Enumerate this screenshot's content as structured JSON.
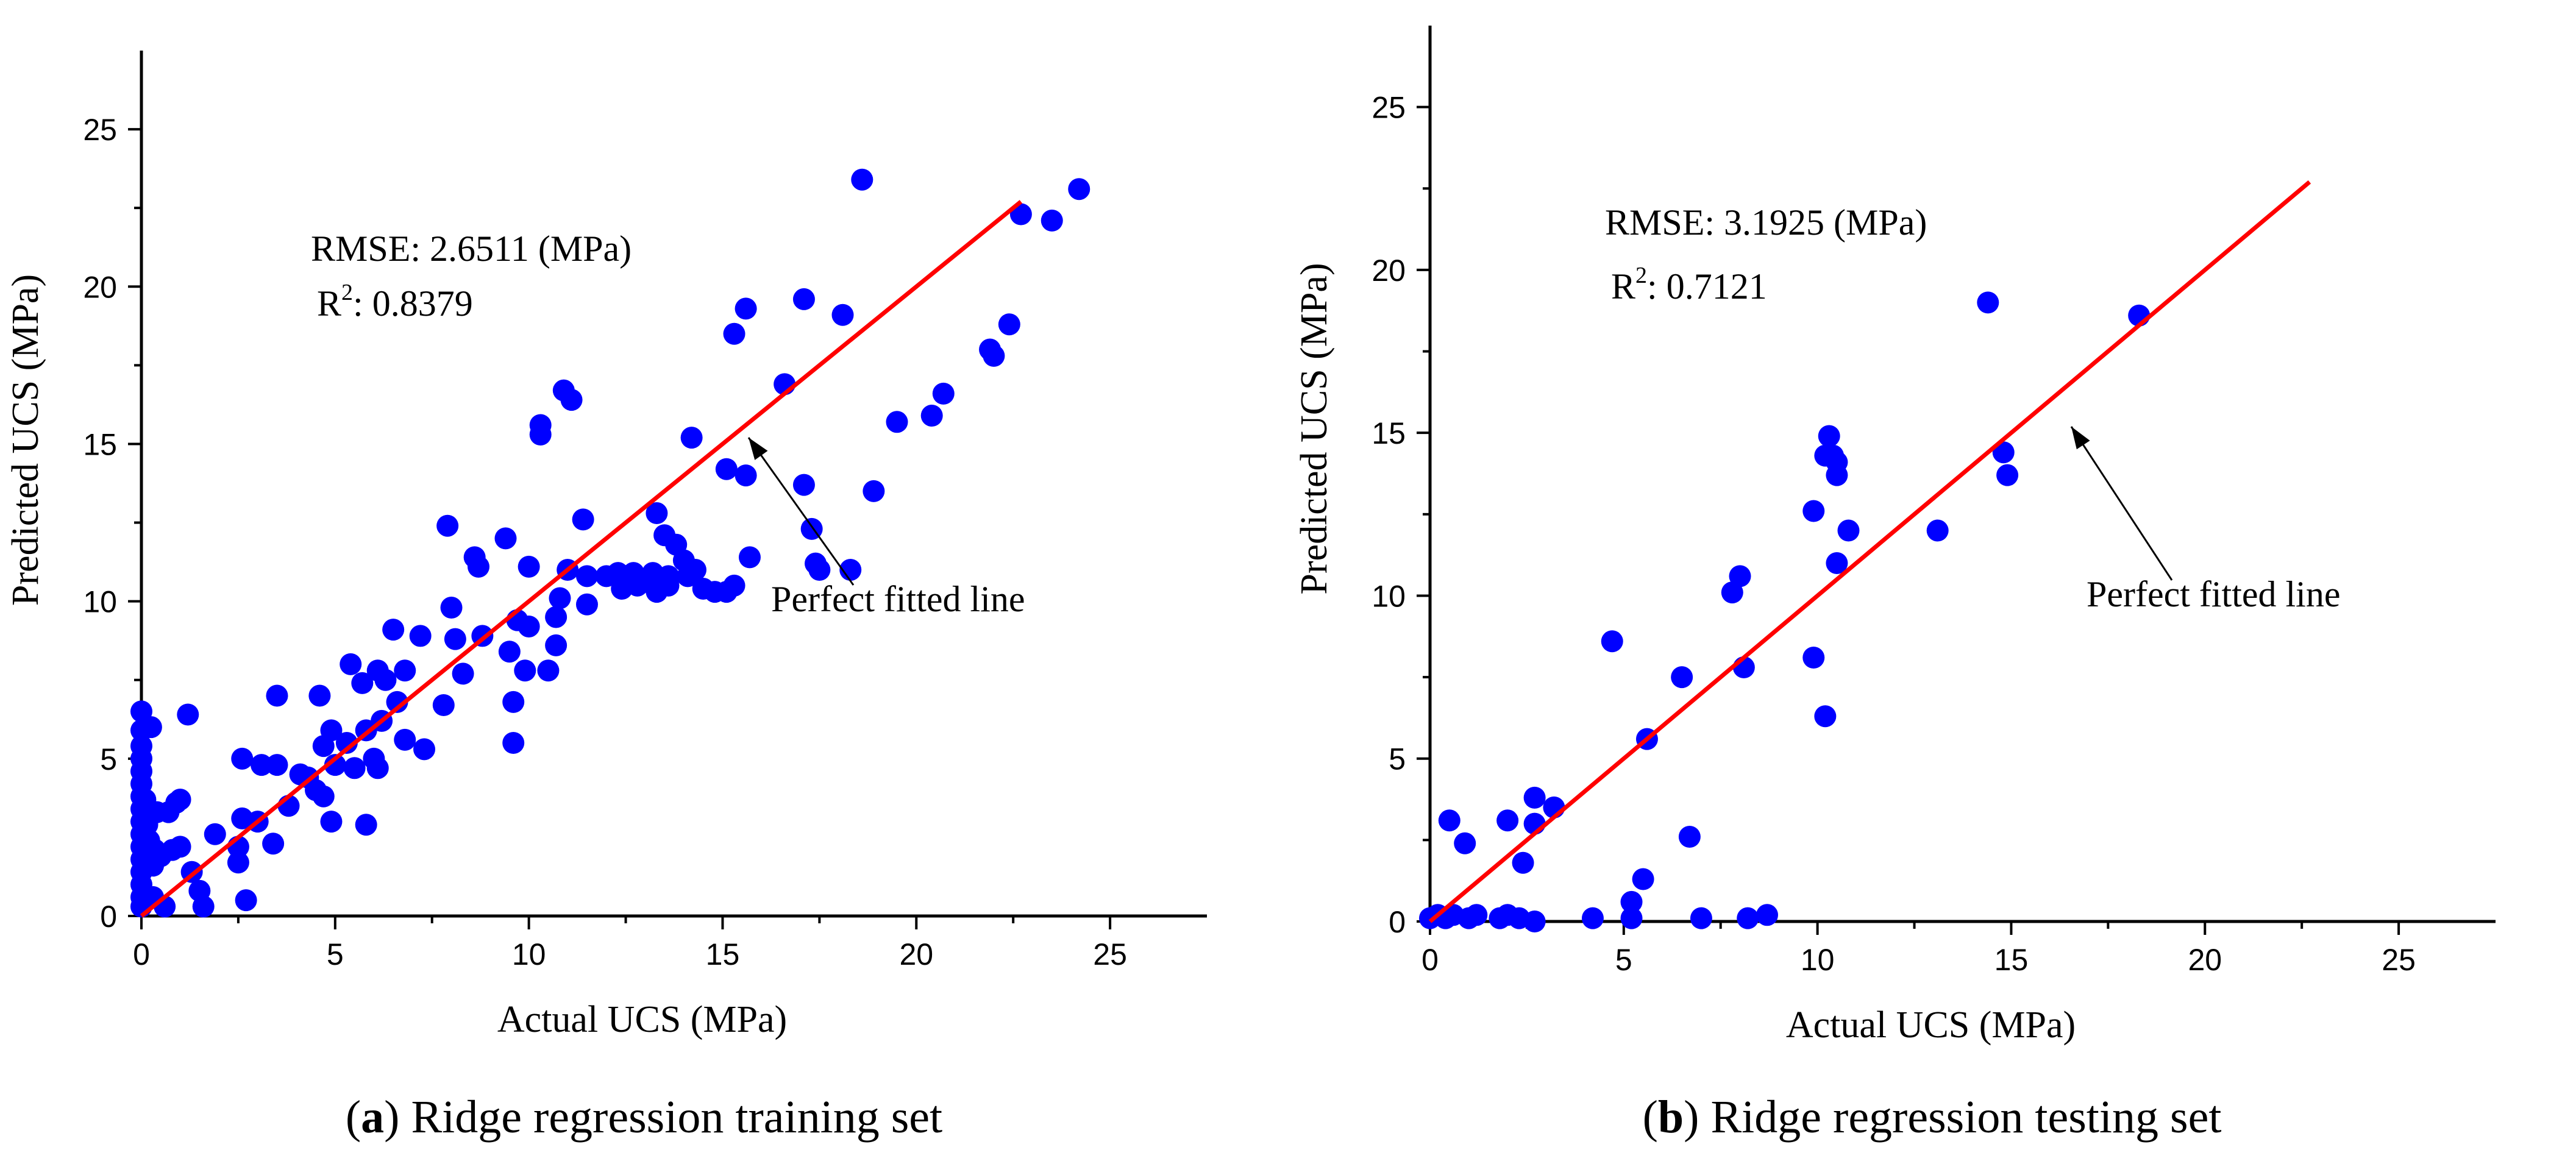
{
  "chart_data": [
    {
      "type": "scatter",
      "panel": "a",
      "xlabel": "Actual UCS (MPa)",
      "ylabel": "Predicted UCS (MPa)",
      "xlim": [
        0,
        27.5
      ],
      "ylim": [
        0,
        27.5
      ],
      "xticks": [
        0,
        5,
        10,
        15,
        20,
        25
      ],
      "yticks": [
        0,
        5,
        10,
        15,
        20,
        25
      ],
      "rmse_label": "RMSE: 2.6511 (MPa)",
      "r2_prefix": "R",
      "r2_sup": "2",
      "r2_value": ": 0.8379",
      "line_label": "Perfect fitted line",
      "fit_line": {
        "x": [
          0,
          22.7
        ],
        "y": [
          0,
          22.7
        ]
      },
      "caption_letter": "a",
      "caption_text": " Ridge regression training set",
      "points": [
        [
          0.0,
          6.5
        ],
        [
          0.0,
          5.9
        ],
        [
          0.0,
          5.4
        ],
        [
          0.0,
          5.0
        ],
        [
          0.0,
          4.6
        ],
        [
          0.0,
          4.2
        ],
        [
          0.0,
          3.8
        ],
        [
          0.0,
          3.4
        ],
        [
          0.0,
          3.0
        ],
        [
          0.0,
          2.6
        ],
        [
          0.0,
          2.2
        ],
        [
          0.0,
          1.8
        ],
        [
          0.0,
          1.4
        ],
        [
          0.0,
          1.0
        ],
        [
          0.0,
          0.6
        ],
        [
          0.0,
          0.3
        ],
        [
          0.1,
          3.7
        ],
        [
          0.15,
          2.9
        ],
        [
          0.2,
          2.4
        ],
        [
          0.25,
          6.0
        ],
        [
          0.3,
          1.6
        ],
        [
          0.35,
          2.1
        ],
        [
          0.3,
          0.6
        ],
        [
          0.4,
          3.3
        ],
        [
          0.5,
          1.9
        ],
        [
          0.6,
          0.3
        ],
        [
          0.7,
          3.3
        ],
        [
          0.8,
          2.1
        ],
        [
          0.9,
          3.6
        ],
        [
          1.0,
          3.7
        ],
        [
          1.0,
          2.2
        ],
        [
          1.2,
          6.4
        ],
        [
          1.3,
          1.4
        ],
        [
          1.5,
          0.8
        ],
        [
          1.6,
          0.3
        ],
        [
          1.9,
          2.6
        ],
        [
          2.5,
          2.2
        ],
        [
          2.5,
          1.7
        ],
        [
          2.6,
          3.1
        ],
        [
          2.6,
          5.0
        ],
        [
          2.7,
          0.5
        ],
        [
          3.0,
          3.0
        ],
        [
          3.1,
          4.8
        ],
        [
          3.4,
          2.3
        ],
        [
          3.5,
          4.8
        ],
        [
          3.5,
          7.0
        ],
        [
          3.8,
          3.5
        ],
        [
          4.1,
          4.5
        ],
        [
          4.3,
          4.4
        ],
        [
          4.5,
          4.0
        ],
        [
          4.6,
          7.0
        ],
        [
          4.7,
          3.8
        ],
        [
          4.7,
          5.4
        ],
        [
          4.9,
          3.0
        ],
        [
          4.9,
          5.9
        ],
        [
          5.0,
          4.8
        ],
        [
          5.3,
          5.5
        ],
        [
          5.4,
          8.0
        ],
        [
          5.5,
          4.7
        ],
        [
          5.7,
          7.4
        ],
        [
          5.8,
          2.9
        ],
        [
          5.8,
          5.9
        ],
        [
          6.0,
          5.0
        ],
        [
          6.1,
          4.7
        ],
        [
          6.1,
          7.8
        ],
        [
          6.2,
          6.2
        ],
        [
          6.3,
          7.5
        ],
        [
          6.5,
          9.1
        ],
        [
          6.6,
          6.8
        ],
        [
          6.8,
          7.8
        ],
        [
          6.8,
          5.6
        ],
        [
          7.2,
          8.9
        ],
        [
          7.3,
          5.3
        ],
        [
          7.8,
          6.7
        ],
        [
          7.9,
          12.4
        ],
        [
          8.0,
          9.8
        ],
        [
          8.1,
          8.8
        ],
        [
          8.3,
          7.7
        ],
        [
          8.6,
          11.4
        ],
        [
          8.7,
          11.1
        ],
        [
          8.8,
          8.9
        ],
        [
          9.4,
          12.0
        ],
        [
          9.5,
          8.4
        ],
        [
          9.6,
          5.5
        ],
        [
          9.6,
          6.8
        ],
        [
          9.7,
          9.4
        ],
        [
          9.9,
          7.8
        ],
        [
          10.0,
          11.1
        ],
        [
          10.0,
          9.2
        ],
        [
          10.3,
          15.6
        ],
        [
          10.3,
          15.3
        ],
        [
          10.5,
          7.8
        ],
        [
          10.7,
          8.6
        ],
        [
          10.7,
          9.5
        ],
        [
          10.8,
          10.1
        ],
        [
          10.9,
          16.7
        ],
        [
          11.0,
          11.0
        ],
        [
          11.1,
          16.4
        ],
        [
          11.4,
          12.6
        ],
        [
          11.5,
          9.9
        ],
        [
          11.5,
          10.8
        ],
        [
          12.0,
          10.8
        ],
        [
          12.3,
          10.9
        ],
        [
          12.4,
          10.4
        ],
        [
          12.6,
          10.7
        ],
        [
          12.7,
          10.9
        ],
        [
          12.8,
          10.5
        ],
        [
          13.1,
          10.6
        ],
        [
          13.2,
          10.9
        ],
        [
          13.3,
          12.8
        ],
        [
          13.3,
          10.3
        ],
        [
          13.5,
          12.1
        ],
        [
          13.6,
          10.8
        ],
        [
          13.6,
          10.5
        ],
        [
          13.8,
          11.8
        ],
        [
          14.0,
          11.3
        ],
        [
          14.1,
          10.8
        ],
        [
          14.2,
          15.2
        ],
        [
          14.3,
          11.0
        ],
        [
          14.5,
          10.4
        ],
        [
          14.8,
          10.3
        ],
        [
          15.1,
          10.3
        ],
        [
          15.1,
          14.2
        ],
        [
          15.3,
          18.5
        ],
        [
          15.3,
          10.5
        ],
        [
          15.6,
          14.0
        ],
        [
          15.6,
          19.3
        ],
        [
          15.7,
          11.4
        ],
        [
          16.6,
          16.9
        ],
        [
          17.1,
          19.6
        ],
        [
          17.1,
          13.7
        ],
        [
          17.3,
          12.3
        ],
        [
          17.4,
          11.2
        ],
        [
          17.5,
          11.0
        ],
        [
          18.1,
          19.1
        ],
        [
          18.3,
          11.0
        ],
        [
          18.6,
          23.4
        ],
        [
          18.9,
          13.5
        ],
        [
          19.5,
          15.7
        ],
        [
          20.4,
          15.9
        ],
        [
          20.7,
          16.6
        ],
        [
          21.9,
          18.0
        ],
        [
          22.0,
          17.8
        ],
        [
          22.4,
          18.8
        ],
        [
          22.7,
          22.3
        ],
        [
          23.5,
          22.1
        ],
        [
          24.2,
          23.1
        ]
      ]
    },
    {
      "type": "scatter",
      "panel": "b",
      "xlabel": "Actual UCS (MPa)",
      "ylabel": "Predicted UCS (MPa)",
      "xlim": [
        0,
        27.5
      ],
      "ylim": [
        0,
        27.5
      ],
      "xticks": [
        0,
        5,
        10,
        15,
        20,
        25
      ],
      "yticks": [
        0,
        5,
        10,
        15,
        20,
        25
      ],
      "rmse_label": "RMSE: 3.1925 (MPa)",
      "r2_prefix": "R",
      "r2_sup": "2",
      "r2_value": ": 0.7121",
      "line_label": "Perfect fitted line",
      "fit_line": {
        "x": [
          0,
          22.7
        ],
        "y": [
          0,
          22.7
        ]
      },
      "caption_letter": "b",
      "caption_text": " Ridge regression testing set",
      "points": [
        [
          0.0,
          0.1
        ],
        [
          0.2,
          0.2
        ],
        [
          0.4,
          0.1
        ],
        [
          0.6,
          0.2
        ],
        [
          1.0,
          0.1
        ],
        [
          1.2,
          0.2
        ],
        [
          1.8,
          0.1
        ],
        [
          2.0,
          0.2
        ],
        [
          2.3,
          0.1
        ],
        [
          2.7,
          0.0
        ],
        [
          0.5,
          3.1
        ],
        [
          0.9,
          2.4
        ],
        [
          2.0,
          3.1
        ],
        [
          2.4,
          1.8
        ],
        [
          2.7,
          3.0
        ],
        [
          2.7,
          3.8
        ],
        [
          3.2,
          3.5
        ],
        [
          4.2,
          0.1
        ],
        [
          4.7,
          8.6
        ],
        [
          5.2,
          0.6
        ],
        [
          5.2,
          0.1
        ],
        [
          5.5,
          1.3
        ],
        [
          5.6,
          5.6
        ],
        [
          6.5,
          7.5
        ],
        [
          6.7,
          2.6
        ],
        [
          7.0,
          0.1
        ],
        [
          7.8,
          10.1
        ],
        [
          8.0,
          10.6
        ],
        [
          8.1,
          7.8
        ],
        [
          8.2,
          0.1
        ],
        [
          8.7,
          0.2
        ],
        [
          9.9,
          12.6
        ],
        [
          9.9,
          8.1
        ],
        [
          10.2,
          14.3
        ],
        [
          10.2,
          6.3
        ],
        [
          10.3,
          14.9
        ],
        [
          10.4,
          14.3
        ],
        [
          10.5,
          11.0
        ],
        [
          10.5,
          14.1
        ],
        [
          10.5,
          13.7
        ],
        [
          10.8,
          12.0
        ],
        [
          13.1,
          12.0
        ],
        [
          14.4,
          19.0
        ],
        [
          14.8,
          14.4
        ],
        [
          14.9,
          13.7
        ],
        [
          18.3,
          18.6
        ]
      ]
    }
  ]
}
